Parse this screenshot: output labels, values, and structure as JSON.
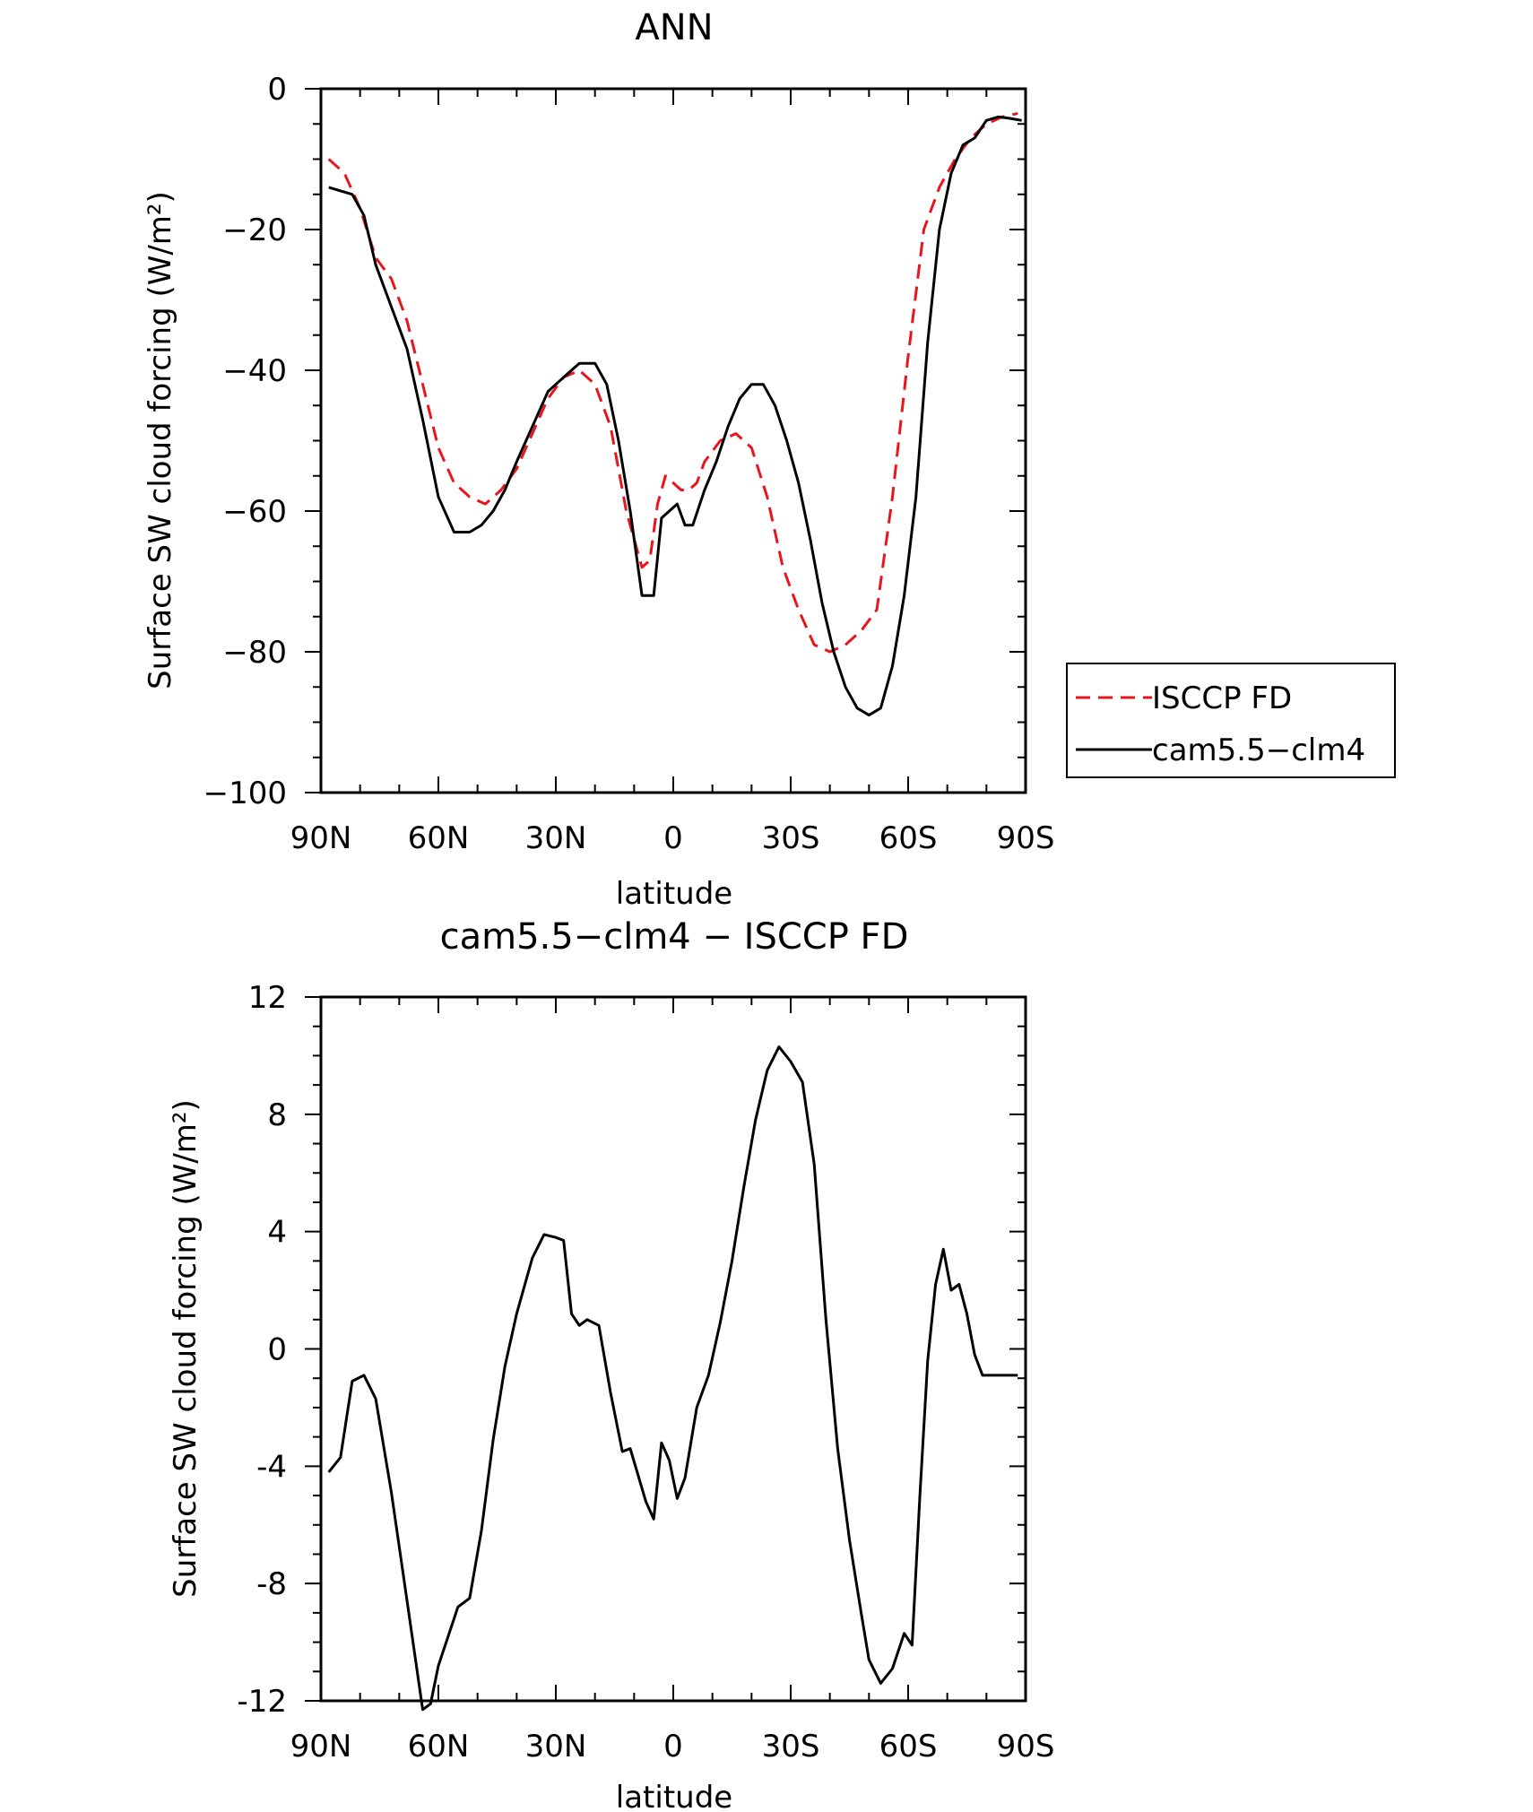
{
  "chart_data": [
    {
      "type": "line",
      "title": "ANN",
      "xlabel": "latitude",
      "ylabel": "Surface SW cloud forcing (W/m²)",
      "ylim": [
        -100,
        0
      ],
      "yticks": [
        0,
        -20,
        -40,
        -60,
        -80,
        -100
      ],
      "ytick_labels": [
        "0",
        "−20",
        "−40",
        "−60",
        "−80",
        "−100"
      ],
      "xticks": [
        -90,
        -60,
        -30,
        0,
        30,
        60,
        90
      ],
      "xtick_labels": [
        "90N",
        "60N",
        "30N",
        "0",
        "30S",
        "60S",
        "90S"
      ],
      "xlim": [
        -90,
        90
      ],
      "legend_position": "right",
      "series": [
        {
          "name": "ISCCP FD",
          "color": "#e8151c",
          "dash": "dashed",
          "x": [
            -88,
            -84,
            -80,
            -76,
            -72,
            -68,
            -64,
            -60,
            -56,
            -52,
            -48,
            -44,
            -40,
            -36,
            -32,
            -28,
            -24,
            -20,
            -16,
            -12,
            -8,
            -6,
            -4,
            -2,
            0,
            2,
            4,
            6,
            8,
            12,
            16,
            20,
            24,
            28,
            32,
            36,
            40,
            44,
            48,
            52,
            56,
            60,
            64,
            68,
            72,
            76,
            80,
            84,
            88
          ],
          "y": [
            -10,
            -12,
            -17,
            -24,
            -27,
            -33,
            -42,
            -51,
            -56,
            -58,
            -59,
            -57,
            -54,
            -49,
            -44,
            -41,
            -40,
            -42,
            -48,
            -60,
            -68,
            -67,
            -59,
            -55,
            -56,
            -57,
            -57,
            -56,
            -53,
            -50,
            -49,
            -51,
            -58,
            -68,
            -74,
            -79,
            -80,
            -79,
            -77,
            -74,
            -58,
            -38,
            -20,
            -14,
            -10,
            -7,
            -5,
            -4,
            -3.5
          ]
        },
        {
          "name": "cam5.5−clm4",
          "color": "#000000",
          "dash": "solid",
          "x": [
            -88,
            -82,
            -79,
            -76,
            -72,
            -68,
            -64,
            -60,
            -56,
            -52,
            -49,
            -46,
            -43,
            -40,
            -36,
            -32,
            -28,
            -24,
            -20,
            -17,
            -14,
            -11,
            -8,
            -5,
            -3,
            -1,
            1,
            3,
            5,
            8,
            11,
            14,
            17,
            20,
            23,
            26,
            29,
            32,
            35,
            38,
            41,
            44,
            47,
            50,
            53,
            56,
            59,
            62,
            65,
            68,
            71,
            74,
            77,
            80,
            83,
            86,
            89
          ],
          "y": [
            -14,
            -15,
            -18,
            -25,
            -31,
            -37,
            -47,
            -58,
            -63,
            -63,
            -62,
            -60,
            -57,
            -53,
            -48,
            -43,
            -41,
            -39,
            -39,
            -42,
            -50,
            -60,
            -72,
            -72,
            -61,
            -60,
            -59,
            -62,
            -62,
            -57,
            -53,
            -48,
            -44,
            -42,
            -42,
            -45,
            -50,
            -56,
            -64,
            -73,
            -80,
            -85,
            -88,
            -89,
            -88,
            -82,
            -72,
            -58,
            -36,
            -20,
            -12,
            -8,
            -7,
            -4.5,
            -4,
            -4.2,
            -4.5
          ]
        }
      ]
    },
    {
      "type": "line",
      "title": "cam5.5−clm4 − ISCCP FD",
      "xlabel": "latitude",
      "ylabel": "Surface SW cloud forcing (W/m²)",
      "ylim": [
        -12,
        12
      ],
      "yticks": [
        12,
        8,
        4,
        0,
        -4,
        -8,
        -12
      ],
      "ytick_labels": [
        "12",
        "8",
        "4",
        "0",
        "-4",
        "-8",
        "-12"
      ],
      "xticks": [
        -90,
        -60,
        -30,
        0,
        30,
        60,
        90
      ],
      "xtick_labels": [
        "90N",
        "60N",
        "30N",
        "0",
        "30S",
        "60S",
        "90S"
      ],
      "xlim": [
        -90,
        90
      ],
      "series": [
        {
          "color": "#000000",
          "dash": "solid",
          "x": [
            -88,
            -85,
            -82,
            -79,
            -76,
            -72,
            -68,
            -64,
            -62,
            -60,
            -55,
            -52,
            -49,
            -46,
            -43,
            -40,
            -36,
            -33,
            -30,
            -28,
            -26,
            -24,
            -22,
            -19,
            -16,
            -13,
            -11,
            -7,
            -5,
            -3,
            -1,
            1,
            3,
            6,
            9,
            12,
            15,
            18,
            21,
            24,
            27,
            30,
            33,
            36,
            39,
            42,
            45,
            48,
            50,
            53,
            56,
            59,
            61,
            63,
            65,
            67,
            69,
            71,
            73,
            75,
            77,
            79,
            81,
            83,
            85,
            88
          ],
          "y": [
            -4.2,
            -3.7,
            -1.1,
            -0.9,
            -1.7,
            -4.9,
            -8.6,
            -12.3,
            -12.1,
            -10.8,
            -8.8,
            -8.5,
            -6.2,
            -3.1,
            -0.6,
            1.2,
            3.1,
            3.9,
            3.8,
            3.7,
            1.2,
            0.8,
            1.0,
            0.8,
            -1.5,
            -3.5,
            -3.4,
            -5.2,
            -5.8,
            -3.2,
            -3.8,
            -5.1,
            -4.4,
            -2.0,
            -0.9,
            0.9,
            3.0,
            5.5,
            7.8,
            9.5,
            10.3,
            9.8,
            9.1,
            6.3,
            1.0,
            -3.4,
            -6.5,
            -9.0,
            -10.6,
            -11.4,
            -10.9,
            -9.7,
            -10.1,
            -5.0,
            -0.4,
            2.2,
            3.4,
            2.0,
            2.2,
            1.2,
            -0.2,
            -0.9,
            -0.9,
            -0.9,
            -0.9,
            -0.9
          ]
        }
      ]
    }
  ]
}
